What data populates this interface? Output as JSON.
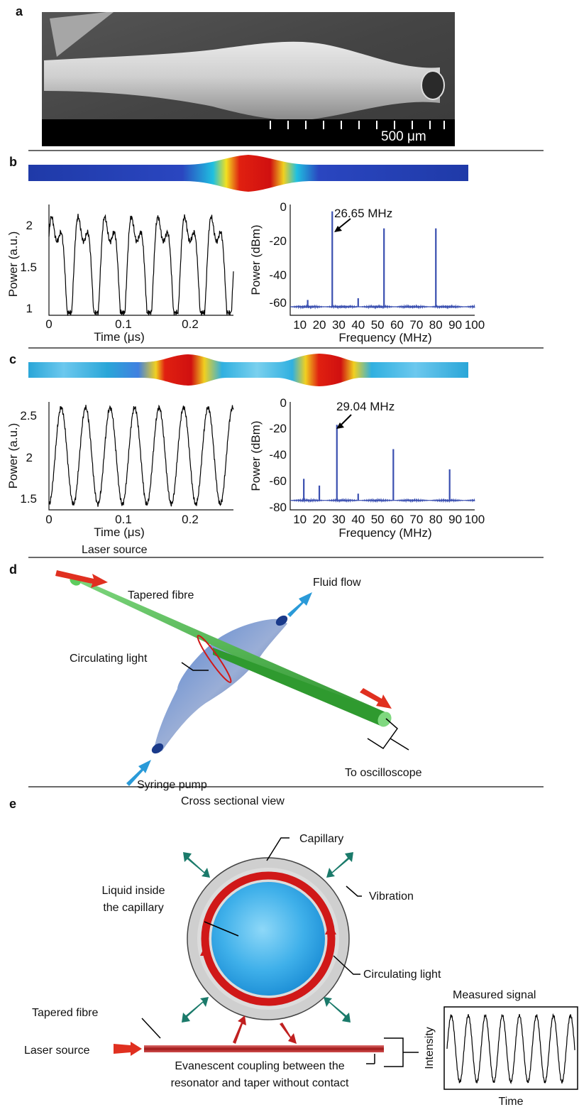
{
  "panels": {
    "a": {
      "letter": "a",
      "scale_bar_label": "500 μm"
    },
    "b": {
      "letter": "b",
      "time_plot": {
        "ylabel": "Power (a.u.)",
        "xlabel": "Time (μs)",
        "yticks": [
          "1",
          "1.5",
          "2"
        ],
        "xticks": [
          "0",
          "0.1",
          "0.2"
        ]
      },
      "spectrum": {
        "ylabel": "Power (dBm)",
        "xlabel": "Frequency (MHz)",
        "yticks": [
          "0",
          "-20",
          "-40",
          "-60"
        ],
        "xticks": [
          "10",
          "20",
          "30",
          "40",
          "50",
          "60",
          "70",
          "80",
          "90",
          "100"
        ],
        "peak_label": "26.65 MHz"
      }
    },
    "c": {
      "letter": "c",
      "time_plot": {
        "ylabel": "Power (a.u.)",
        "xlabel": "Time (μs)",
        "yticks": [
          "1.5",
          "2",
          "2.5"
        ],
        "xticks": [
          "0",
          "0.1",
          "0.2"
        ]
      },
      "spectrum": {
        "ylabel": "Power (dBm)",
        "xlabel": "Frequency (MHz)",
        "yticks": [
          "0",
          "-20",
          "-40",
          "-60",
          "-80"
        ],
        "xticks": [
          "10",
          "20",
          "30",
          "40",
          "50",
          "60",
          "70",
          "80",
          "90",
          "100"
        ],
        "peak_label": "29.04 MHz"
      }
    },
    "d": {
      "letter": "d",
      "laser_source": "Laser source",
      "tapered_fibre": "Tapered fibre",
      "fluid_flow": "Fluid flow",
      "circulating_light": "Circulating light",
      "syringe_pump": "Syringe pump",
      "to_oscilloscope": "To oscilloscope"
    },
    "e": {
      "letter": "e",
      "title": "Cross sectional view",
      "capillary": "Capillary",
      "vibration": "Vibration",
      "liquid_line1": "Liquid inside",
      "liquid_line2": "the capillary",
      "circulating_light": "Circulating light",
      "tapered_fibre": "Tapered fibre",
      "laser_source": "Laser source",
      "coupling_line1": "Evanescent coupling between the",
      "coupling_line2": "resonator and taper without contact",
      "measured_signal": "Measured signal",
      "intensity": "Intensity",
      "time": "Time"
    }
  },
  "chart_data": [
    {
      "type": "line",
      "panel": "b-time",
      "xlabel": "Time (μs)",
      "ylabel": "Power (a.u.)",
      "xlim": [
        0,
        0.26
      ],
      "ylim": [
        0.97,
        2.25
      ],
      "series": [
        {
          "period_us": 0.0375,
          "min": 1.0,
          "max": 2.2
        }
      ]
    },
    {
      "type": "line",
      "panel": "b-spectrum",
      "xlabel": "Frequency (MHz)",
      "ylabel": "Power (dBm)",
      "xlim": [
        5,
        100
      ],
      "ylim": [
        -65,
        0
      ],
      "noise_floor": -60,
      "peaks": [
        {
          "x": 14,
          "y": -56
        },
        {
          "x": 26.65,
          "y": -4
        },
        {
          "x": 40,
          "y": -55
        },
        {
          "x": 53.3,
          "y": -14
        },
        {
          "x": 80,
          "y": -14
        }
      ]
    },
    {
      "type": "line",
      "panel": "c-time",
      "xlabel": "Time (μs)",
      "ylabel": "Power (a.u.)",
      "xlim": [
        0,
        0.26
      ],
      "ylim": [
        1.38,
        2.72
      ],
      "series": [
        {
          "period_us": 0.0345,
          "min": 1.45,
          "max": 2.65
        }
      ]
    },
    {
      "type": "line",
      "panel": "c-spectrum",
      "xlabel": "Frequency (MHz)",
      "ylabel": "Power (dBm)",
      "xlim": [
        5,
        100
      ],
      "ylim": [
        -80,
        0
      ],
      "noise_floor": -73,
      "peaks": [
        {
          "x": 12,
          "y": -57
        },
        {
          "x": 20,
          "y": -62
        },
        {
          "x": 29.04,
          "y": -17
        },
        {
          "x": 40,
          "y": -68
        },
        {
          "x": 58.1,
          "y": -35
        },
        {
          "x": 87.1,
          "y": -50
        }
      ]
    }
  ]
}
